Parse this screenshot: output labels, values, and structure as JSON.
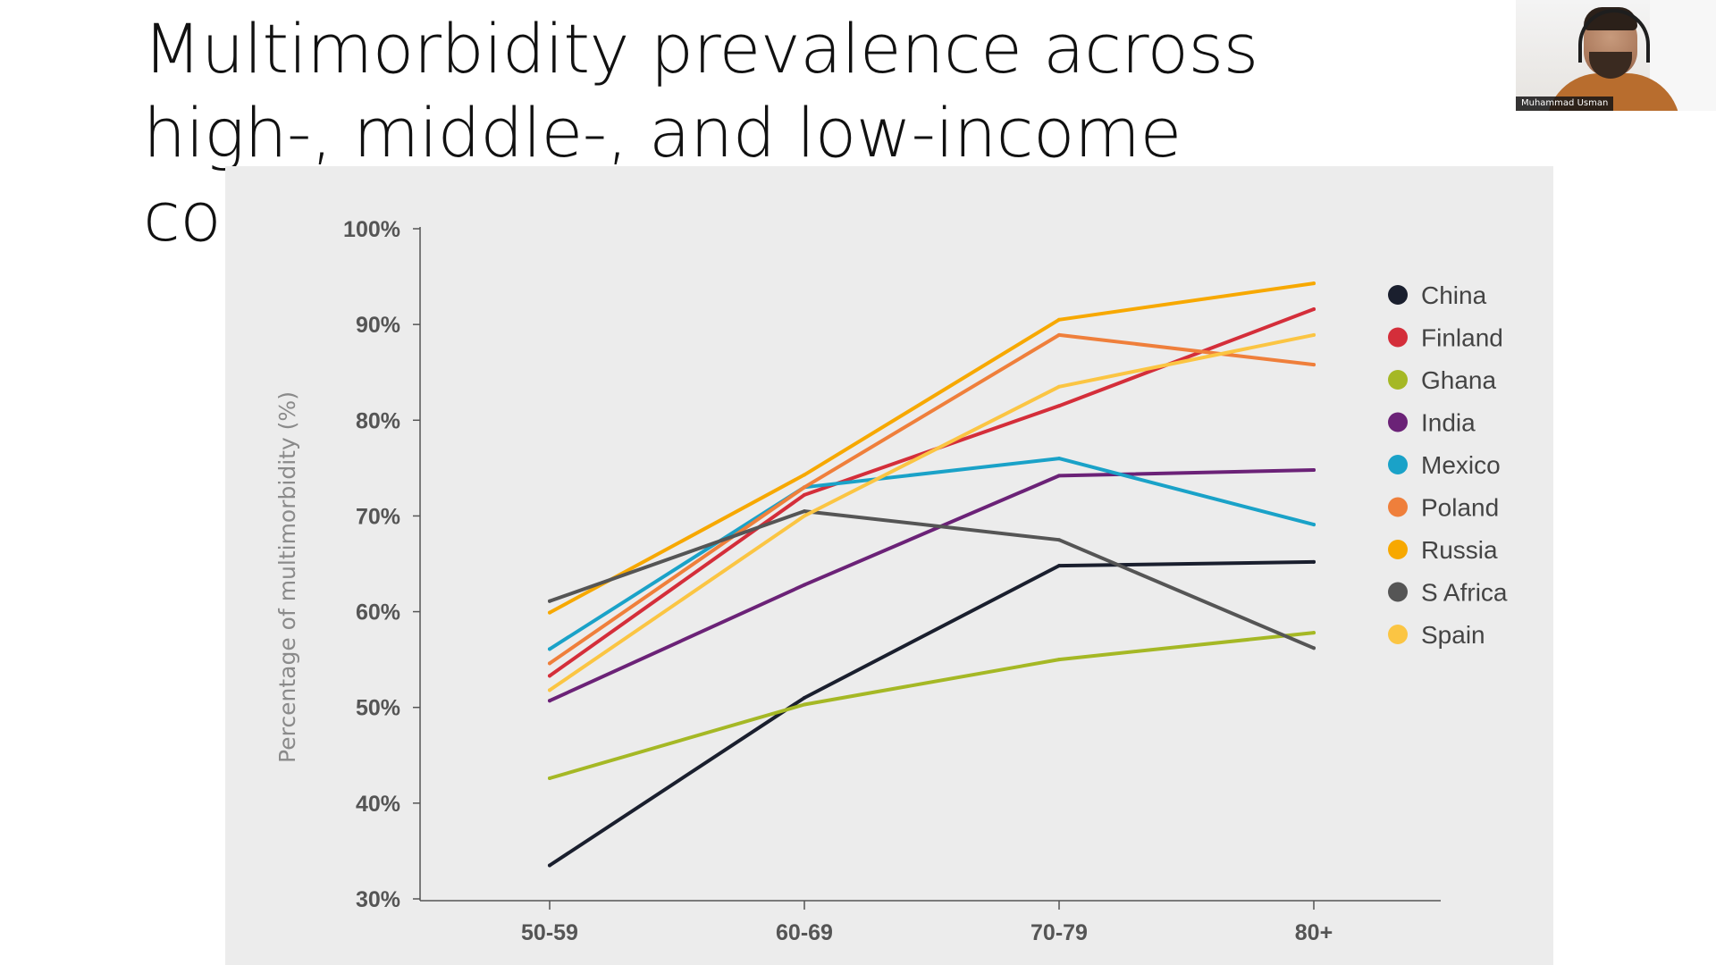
{
  "slide": {
    "title": "Multimorbidity prevalence across high-, middle-, and low-income countries"
  },
  "webcam": {
    "participant_name": "Muhammad Usman"
  },
  "chart_data": {
    "type": "line",
    "title": "",
    "xlabel": "",
    "ylabel": "Percentage of multimorbidity (%)",
    "categories": [
      "50-59",
      "60-69",
      "70-79",
      "80+"
    ],
    "ylim": [
      30,
      100
    ],
    "yticks": [
      30,
      40,
      50,
      60,
      70,
      80,
      90,
      100
    ],
    "ytick_labels": [
      "30%",
      "40%",
      "50%",
      "60%",
      "70%",
      "80%",
      "90%",
      "100%"
    ],
    "grid": false,
    "legend_position": "right",
    "series": [
      {
        "name": "China",
        "color": "#1a1f2e",
        "values": [
          33.5,
          51.0,
          64.8,
          65.2
        ]
      },
      {
        "name": "Finland",
        "color": "#d42e3a",
        "values": [
          53.3,
          72.2,
          81.5,
          91.6
        ]
      },
      {
        "name": "Ghana",
        "color": "#a5b825",
        "values": [
          42.6,
          50.3,
          55.0,
          57.8
        ]
      },
      {
        "name": "India",
        "color": "#6b2277",
        "values": [
          50.7,
          62.8,
          74.2,
          74.8
        ]
      },
      {
        "name": "Mexico",
        "color": "#1aa2c8",
        "values": [
          56.1,
          73.0,
          76.0,
          69.1
        ]
      },
      {
        "name": "Poland",
        "color": "#ef7f3b",
        "values": [
          54.6,
          73.0,
          88.9,
          85.8
        ]
      },
      {
        "name": "Russia",
        "color": "#f7a800",
        "values": [
          59.9,
          74.3,
          90.5,
          94.3
        ]
      },
      {
        "name": "S Africa",
        "color": "#555555",
        "values": [
          61.1,
          70.5,
          67.5,
          56.2
        ]
      },
      {
        "name": "Spain",
        "color": "#fbc543",
        "values": [
          51.8,
          70.0,
          83.5,
          88.9
        ]
      }
    ]
  }
}
